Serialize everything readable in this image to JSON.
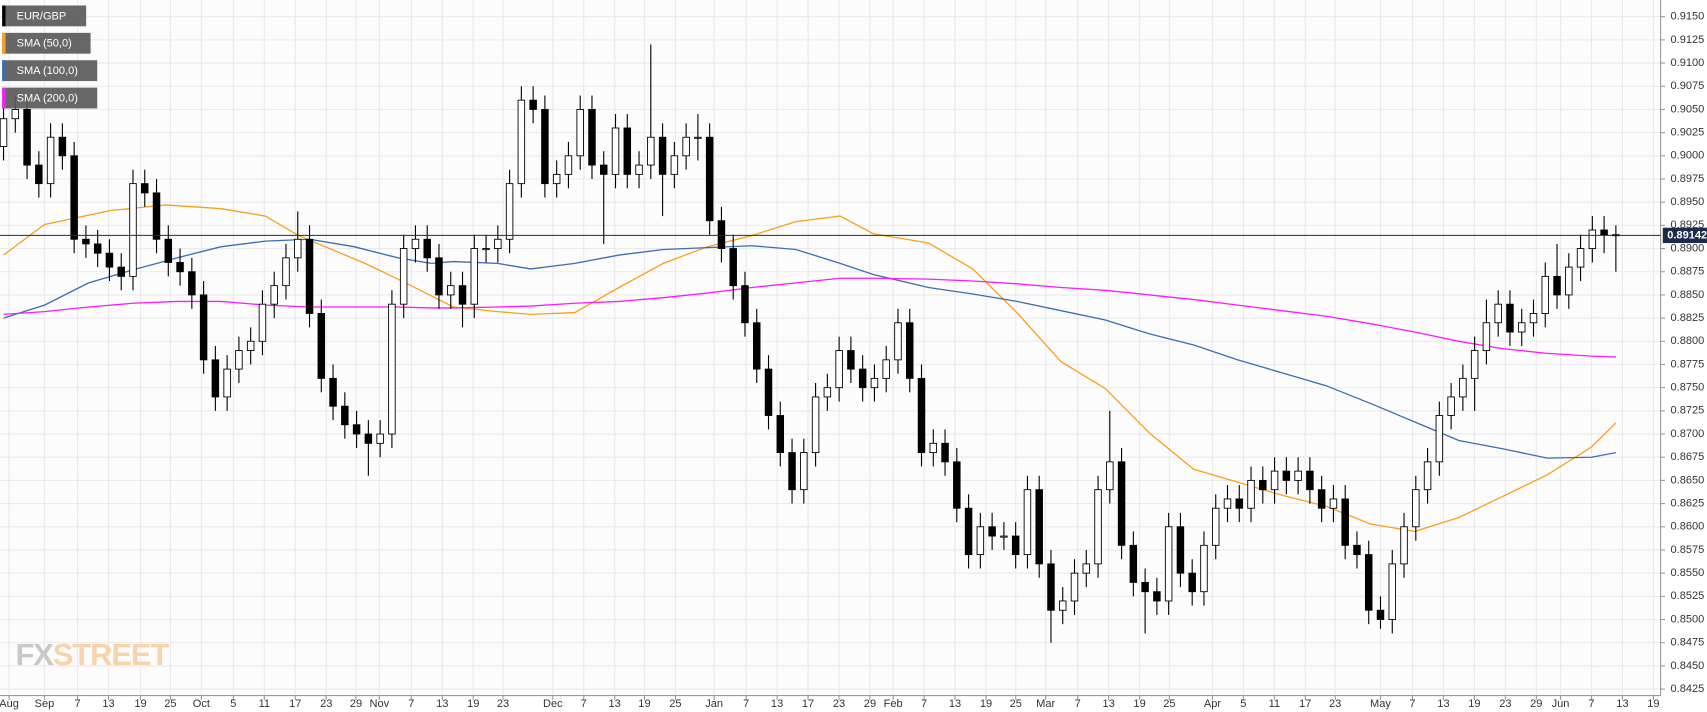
{
  "chart_data": {
    "type": "candlestick",
    "name": "EUR/GBP",
    "color": "#000000",
    "color_up": "#ffffff",
    "color_down": "#000000",
    "legend": "top-left",
    "grid": true,
    "open": [
      0.901,
      0.904,
      0.905,
      0.899,
      0.897,
      0.902,
      0.9,
      0.891,
      0.8905,
      0.8895,
      0.888,
      0.887,
      0.897,
      0.896,
      0.891,
      0.8885,
      0.8875,
      0.885,
      0.878,
      0.874,
      0.877,
      0.879,
      0.88,
      0.884,
      0.886,
      0.889,
      0.891,
      0.883,
      0.876,
      0.873,
      0.871,
      0.87,
      0.869,
      0.87,
      0.884,
      0.89,
      0.891,
      0.889,
      0.885,
      0.886,
      0.884,
      0.89,
      0.89,
      0.891,
      0.897,
      0.906,
      0.905,
      0.897,
      0.898,
      0.9,
      0.905,
      0.899,
      0.898,
      0.903,
      0.898,
      0.899,
      0.902,
      0.898,
      0.9,
      0.902,
      0.902,
      0.893,
      0.89,
      0.886,
      0.882,
      0.877,
      0.872,
      0.868,
      0.864,
      0.868,
      0.874,
      0.875,
      0.879,
      0.877,
      0.875,
      0.876,
      0.878,
      0.882,
      0.876,
      0.868,
      0.869,
      0.867,
      0.862,
      0.857,
      0.86,
      0.859,
      0.859,
      0.857,
      0.864,
      0.856,
      0.851,
      0.852,
      0.855,
      0.856,
      0.864,
      0.867,
      0.858,
      0.854,
      0.853,
      0.852,
      0.86,
      0.855,
      0.853,
      0.858,
      0.862,
      0.863,
      0.862,
      0.865,
      0.864,
      0.866,
      0.865,
      0.866,
      0.864,
      0.862,
      0.863,
      0.858,
      0.857,
      0.851,
      0.85,
      0.856,
      0.86,
      0.864,
      0.867,
      0.872,
      0.874,
      0.876,
      0.879,
      0.882,
      0.884,
      0.881,
      0.882,
      0.883,
      0.887,
      0.885,
      0.888,
      0.89,
      0.892,
      0.8915
    ],
    "high": [
      0.9055,
      0.9065,
      0.9065,
      0.9005,
      0.9035,
      0.9035,
      0.9015,
      0.8925,
      0.892,
      0.891,
      0.8895,
      0.8985,
      0.8985,
      0.8975,
      0.8925,
      0.89,
      0.889,
      0.8865,
      0.8795,
      0.8785,
      0.8805,
      0.8815,
      0.8855,
      0.8875,
      0.8905,
      0.894,
      0.8925,
      0.8845,
      0.8775,
      0.8745,
      0.8725,
      0.8715,
      0.8715,
      0.8855,
      0.8915,
      0.8925,
      0.8925,
      0.8905,
      0.8875,
      0.8875,
      0.8915,
      0.8915,
      0.8925,
      0.8985,
      0.9075,
      0.9075,
      0.9065,
      0.8995,
      0.9015,
      0.9065,
      0.9065,
      0.9005,
      0.9045,
      0.9045,
      0.9005,
      0.912,
      0.9035,
      0.9015,
      0.9035,
      0.9045,
      0.9035,
      0.8945,
      0.8915,
      0.8875,
      0.8835,
      0.8785,
      0.8735,
      0.8695,
      0.8695,
      0.8755,
      0.8765,
      0.8805,
      0.8805,
      0.8785,
      0.8775,
      0.8795,
      0.8835,
      0.8835,
      0.8775,
      0.8705,
      0.8705,
      0.8685,
      0.8635,
      0.8615,
      0.8615,
      0.8605,
      0.8605,
      0.8655,
      0.8655,
      0.8575,
      0.8535,
      0.8565,
      0.8575,
      0.8655,
      0.8725,
      0.8685,
      0.8595,
      0.8555,
      0.8545,
      0.8615,
      0.8615,
      0.8565,
      0.8595,
      0.8635,
      0.8645,
      0.8645,
      0.8665,
      0.8665,
      0.8675,
      0.8675,
      0.8675,
      0.8675,
      0.8655,
      0.8645,
      0.8645,
      0.8595,
      0.8585,
      0.8525,
      0.8575,
      0.8615,
      0.8655,
      0.8685,
      0.8735,
      0.8755,
      0.8775,
      0.8805,
      0.8845,
      0.8855,
      0.8855,
      0.8835,
      0.8845,
      0.8885,
      0.8905,
      0.8895,
      0.8915,
      0.8935,
      0.8935,
      0.8925
    ],
    "low": [
      0.8995,
      0.9025,
      0.8975,
      0.8955,
      0.8955,
      0.8985,
      0.8895,
      0.889,
      0.888,
      0.8865,
      0.8855,
      0.8855,
      0.8945,
      0.8895,
      0.887,
      0.886,
      0.8835,
      0.8765,
      0.8725,
      0.8725,
      0.8755,
      0.8775,
      0.8785,
      0.8825,
      0.8845,
      0.8875,
      0.8815,
      0.8745,
      0.8715,
      0.8695,
      0.8685,
      0.8655,
      0.8675,
      0.8685,
      0.8825,
      0.8885,
      0.8875,
      0.8835,
      0.8835,
      0.8815,
      0.8825,
      0.8885,
      0.8885,
      0.8895,
      0.8955,
      0.9035,
      0.8955,
      0.8955,
      0.8965,
      0.8985,
      0.8975,
      0.8905,
      0.8965,
      0.8965,
      0.8965,
      0.8975,
      0.8935,
      0.8965,
      0.8985,
      0.8995,
      0.8915,
      0.8885,
      0.8845,
      0.8805,
      0.8755,
      0.8705,
      0.8665,
      0.8625,
      0.8625,
      0.8665,
      0.8725,
      0.8735,
      0.8755,
      0.8735,
      0.8735,
      0.8745,
      0.8765,
      0.8745,
      0.8665,
      0.8665,
      0.8655,
      0.8605,
      0.8555,
      0.8555,
      0.8575,
      0.8575,
      0.8555,
      0.8555,
      0.8545,
      0.8475,
      0.8495,
      0.8505,
      0.8535,
      0.8545,
      0.8625,
      0.8565,
      0.8525,
      0.8485,
      0.8505,
      0.8505,
      0.8535,
      0.8515,
      0.8515,
      0.8565,
      0.8605,
      0.8605,
      0.8605,
      0.8625,
      0.8625,
      0.8635,
      0.8635,
      0.8625,
      0.8605,
      0.8605,
      0.8565,
      0.8555,
      0.8495,
      0.849,
      0.8485,
      0.8545,
      0.8585,
      0.8625,
      0.8655,
      0.8705,
      0.8725,
      0.8725,
      0.8775,
      0.8805,
      0.8795,
      0.8795,
      0.8805,
      0.8815,
      0.8835,
      0.8835,
      0.8865,
      0.8885,
      0.8895,
      0.8875
    ],
    "close": [
      0.904,
      0.905,
      0.899,
      0.897,
      0.902,
      0.9,
      0.891,
      0.8905,
      0.8895,
      0.888,
      0.887,
      0.897,
      0.896,
      0.891,
      0.8885,
      0.8875,
      0.885,
      0.878,
      0.874,
      0.877,
      0.879,
      0.88,
      0.884,
      0.886,
      0.889,
      0.891,
      0.883,
      0.876,
      0.873,
      0.871,
      0.87,
      0.869,
      0.87,
      0.884,
      0.89,
      0.891,
      0.889,
      0.885,
      0.886,
      0.884,
      0.89,
      0.89,
      0.891,
      0.897,
      0.906,
      0.905,
      0.897,
      0.898,
      0.9,
      0.905,
      0.899,
      0.898,
      0.903,
      0.898,
      0.899,
      0.902,
      0.898,
      0.9,
      0.902,
      0.902,
      0.893,
      0.89,
      0.886,
      0.882,
      0.877,
      0.872,
      0.868,
      0.864,
      0.868,
      0.874,
      0.875,
      0.879,
      0.877,
      0.875,
      0.876,
      0.878,
      0.882,
      0.876,
      0.868,
      0.869,
      0.867,
      0.862,
      0.857,
      0.86,
      0.859,
      0.859,
      0.857,
      0.864,
      0.856,
      0.851,
      0.852,
      0.855,
      0.856,
      0.864,
      0.867,
      0.858,
      0.854,
      0.853,
      0.852,
      0.86,
      0.855,
      0.853,
      0.858,
      0.862,
      0.863,
      0.862,
      0.865,
      0.864,
      0.866,
      0.865,
      0.866,
      0.864,
      0.862,
      0.863,
      0.858,
      0.857,
      0.851,
      0.85,
      0.856,
      0.86,
      0.864,
      0.867,
      0.872,
      0.874,
      0.876,
      0.879,
      0.882,
      0.884,
      0.881,
      0.882,
      0.883,
      0.887,
      0.885,
      0.888,
      0.89,
      0.892,
      0.8915,
      0.8914
    ],
    "series": [
      {
        "name": "SMA (50,0)",
        "color": "#f7a21b",
        "x": [
          0,
          3.48,
          9.11,
          13.8,
          18.5,
          22.25,
          25.07,
          27.89,
          30.71,
          33.52,
          36.34,
          38.22,
          41.97,
          44.79,
          48.54,
          52.3,
          56.06,
          59.81,
          63.57,
          67.33,
          71.08,
          73.9,
          78.59,
          82.35,
          86.1,
          89.86,
          93.62,
          97.37,
          101.13,
          104.88,
          108.64,
          112.4,
          116.15,
          119.91,
          123.66,
          127.42,
          131.17,
          134.93,
          137
        ],
        "values": [
          0.8893,
          0.8926,
          0.8941,
          0.8947,
          0.8943,
          0.8935,
          0.8914,
          0.8899,
          0.8884,
          0.8867,
          0.8849,
          0.8837,
          0.8832,
          0.8829,
          0.8831,
          0.8858,
          0.8884,
          0.8902,
          0.8914,
          0.8929,
          0.8935,
          0.8916,
          0.8906,
          0.8878,
          0.8831,
          0.8778,
          0.8749,
          0.8701,
          0.8662,
          0.8648,
          0.8634,
          0.8622,
          0.8603,
          0.8595,
          0.861,
          0.8633,
          0.8656,
          0.8686,
          0.8712
        ]
      },
      {
        "name": "SMA (100,0)",
        "color": "#3a6db4",
        "x": [
          0,
          3.48,
          7.23,
          10.99,
          14.74,
          18.5,
          22.25,
          26.01,
          29.77,
          33.52,
          36.34,
          38.22,
          41.97,
          44.79,
          48.54,
          52.3,
          56.06,
          59.81,
          63.57,
          67.33,
          71.08,
          73.9,
          78.59,
          82.35,
          86.1,
          89.86,
          93.62,
          97.37,
          101.13,
          104.88,
          108.64,
          112.4,
          116.15,
          119.91,
          123.66,
          127.42,
          131.17,
          134.93,
          137
        ],
        "values": [
          0.8825,
          0.8839,
          0.8863,
          0.8877,
          0.889,
          0.8902,
          0.8908,
          0.891,
          0.8902,
          0.889,
          0.8884,
          0.8886,
          0.8884,
          0.8878,
          0.8884,
          0.8893,
          0.8899,
          0.8901,
          0.8903,
          0.8899,
          0.8884,
          0.8872,
          0.8858,
          0.8851,
          0.8843,
          0.8833,
          0.8823,
          0.8808,
          0.8796,
          0.878,
          0.8766,
          0.8752,
          0.8733,
          0.8713,
          0.8693,
          0.8684,
          0.8674,
          0.8675,
          0.868
        ]
      },
      {
        "name": "SMA (200,0)",
        "color": "#ff19ff",
        "x": [
          0,
          3.48,
          7.23,
          10.99,
          14.74,
          18.5,
          22.25,
          26.01,
          29.77,
          33.52,
          36.34,
          38.22,
          41.97,
          44.79,
          48.54,
          52.3,
          56.06,
          59.81,
          63.57,
          67.33,
          71.08,
          73.9,
          78.59,
          82.35,
          86.1,
          89.86,
          93.62,
          97.37,
          101.13,
          104.88,
          108.64,
          112.4,
          116.15,
          119.91,
          123.66,
          127.42,
          131.17,
          134.93,
          137
        ],
        "values": [
          0.8829,
          0.8832,
          0.8837,
          0.8841,
          0.8843,
          0.8843,
          0.8839,
          0.8837,
          0.8837,
          0.8837,
          0.8836,
          0.8836,
          0.8837,
          0.8838,
          0.8841,
          0.8843,
          0.8847,
          0.8852,
          0.8858,
          0.8863,
          0.8868,
          0.8868,
          0.8867,
          0.8865,
          0.8862,
          0.8858,
          0.8855,
          0.885,
          0.8845,
          0.8839,
          0.8833,
          0.8827,
          0.8819,
          0.881,
          0.88,
          0.8792,
          0.8787,
          0.8784,
          0.8783
        ]
      }
    ],
    "last_price": 0.89142,
    "last_price_color": "#1c2b4a",
    "xlim": [
      -0.3,
      140.8
    ],
    "xticks": [
      {
        "value": 0.47,
        "label": "Aug"
      },
      {
        "value": 3.48,
        "label": "Sep"
      },
      {
        "value": 6.29,
        "label": "7"
      },
      {
        "value": 8.92,
        "label": "13"
      },
      {
        "value": 11.64,
        "label": "19"
      },
      {
        "value": 14.18,
        "label": "25"
      },
      {
        "value": 16.81,
        "label": "Oct"
      },
      {
        "value": 19.53,
        "label": "5"
      },
      {
        "value": 22.16,
        "label": "11"
      },
      {
        "value": 24.79,
        "label": "17"
      },
      {
        "value": 27.42,
        "label": "23"
      },
      {
        "value": 29.95,
        "label": "29"
      },
      {
        "value": 31.93,
        "label": "Nov"
      },
      {
        "value": 34.65,
        "label": "7"
      },
      {
        "value": 37.28,
        "label": "13"
      },
      {
        "value": 39.91,
        "label": "19"
      },
      {
        "value": 42.44,
        "label": "23"
      },
      {
        "value": 46.67,
        "label": "Dec"
      },
      {
        "value": 49.3,
        "label": "7"
      },
      {
        "value": 51.93,
        "label": "13"
      },
      {
        "value": 54.46,
        "label": "19"
      },
      {
        "value": 57.09,
        "label": "25"
      },
      {
        "value": 60.38,
        "label": "Jan"
      },
      {
        "value": 63.1,
        "label": "7"
      },
      {
        "value": 65.73,
        "label": "13"
      },
      {
        "value": 68.36,
        "label": "17"
      },
      {
        "value": 70.99,
        "label": "23"
      },
      {
        "value": 73.62,
        "label": "29"
      },
      {
        "value": 75.59,
        "label": "Feb"
      },
      {
        "value": 78.22,
        "label": "7"
      },
      {
        "value": 80.85,
        "label": "13"
      },
      {
        "value": 83.48,
        "label": "19"
      },
      {
        "value": 86.01,
        "label": "25"
      },
      {
        "value": 88.55,
        "label": "Mar"
      },
      {
        "value": 91.27,
        "label": "7"
      },
      {
        "value": 93.9,
        "label": "13"
      },
      {
        "value": 96.53,
        "label": "19"
      },
      {
        "value": 99.06,
        "label": "25"
      },
      {
        "value": 102.72,
        "label": "Apr"
      },
      {
        "value": 105.35,
        "label": "5"
      },
      {
        "value": 107.98,
        "label": "11"
      },
      {
        "value": 110.61,
        "label": "17"
      },
      {
        "value": 113.15,
        "label": "23"
      },
      {
        "value": 117.0,
        "label": "May"
      },
      {
        "value": 119.72,
        "label": "7"
      },
      {
        "value": 122.35,
        "label": "13"
      },
      {
        "value": 124.98,
        "label": "19"
      },
      {
        "value": 127.61,
        "label": "23"
      },
      {
        "value": 130.24,
        "label": "29"
      },
      {
        "value": 132.3,
        "label": "Jun"
      },
      {
        "value": 134.93,
        "label": "7"
      },
      {
        "value": 137.56,
        "label": "13"
      },
      {
        "value": 140.19,
        "label": "19"
      }
    ],
    "ylim": [
      0.8418,
      0.9168
    ],
    "yticks": [
      {
        "value": 0.8425,
        "label": "0.8425"
      },
      {
        "value": 0.845,
        "label": "0.8450"
      },
      {
        "value": 0.8475,
        "label": "0.8475"
      },
      {
        "value": 0.85,
        "label": "0.8500"
      },
      {
        "value": 0.8525,
        "label": "0.8525"
      },
      {
        "value": 0.855,
        "label": "0.8550"
      },
      {
        "value": 0.8575,
        "label": "0.8575"
      },
      {
        "value": 0.86,
        "label": "0.8600"
      },
      {
        "value": 0.8625,
        "label": "0.8625"
      },
      {
        "value": 0.865,
        "label": "0.8650"
      },
      {
        "value": 0.8675,
        "label": "0.8675"
      },
      {
        "value": 0.87,
        "label": "0.8700"
      },
      {
        "value": 0.8725,
        "label": "0.8725"
      },
      {
        "value": 0.875,
        "label": "0.8750"
      },
      {
        "value": 0.8775,
        "label": "0.8775"
      },
      {
        "value": 0.88,
        "label": "0.8800"
      },
      {
        "value": 0.8825,
        "label": "0.8825"
      },
      {
        "value": 0.885,
        "label": "0.8850"
      },
      {
        "value": 0.8875,
        "label": "0.8875"
      },
      {
        "value": 0.89,
        "label": "0.8900"
      },
      {
        "value": 0.8925,
        "label": "0.8925"
      },
      {
        "value": 0.895,
        "label": "0.8950"
      },
      {
        "value": 0.8975,
        "label": "0.8975"
      },
      {
        "value": 0.9,
        "label": "0.9000"
      },
      {
        "value": 0.9025,
        "label": "0.9025"
      },
      {
        "value": 0.905,
        "label": "0.9050"
      },
      {
        "value": 0.9075,
        "label": "0.9075"
      },
      {
        "value": 0.91,
        "label": "0.9100"
      },
      {
        "value": 0.9125,
        "label": "0.9125"
      },
      {
        "value": 0.915,
        "label": "0.9150"
      }
    ],
    "watermark": [
      "FX",
      "STREET"
    ]
  }
}
